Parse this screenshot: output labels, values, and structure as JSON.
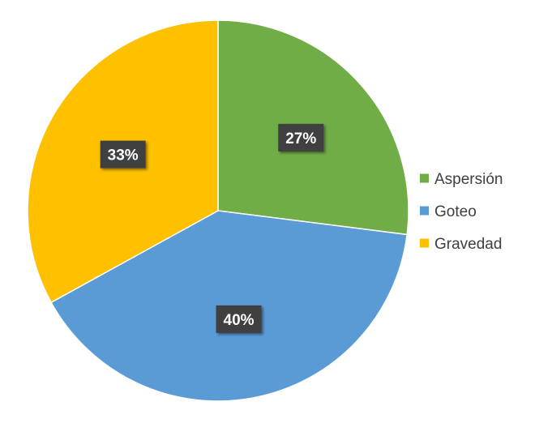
{
  "chart_data": {
    "type": "pie",
    "categories": [
      "Aspersión",
      "Goteo",
      "Gravedad"
    ],
    "values": [
      27,
      40,
      33
    ],
    "labels": [
      "27%",
      "40%",
      "33%"
    ],
    "colors": [
      "#70AD47",
      "#5B9BD5",
      "#FFC000"
    ],
    "legend_position": "right",
    "start_angle": "12 o'clock",
    "direction": "clockwise"
  }
}
